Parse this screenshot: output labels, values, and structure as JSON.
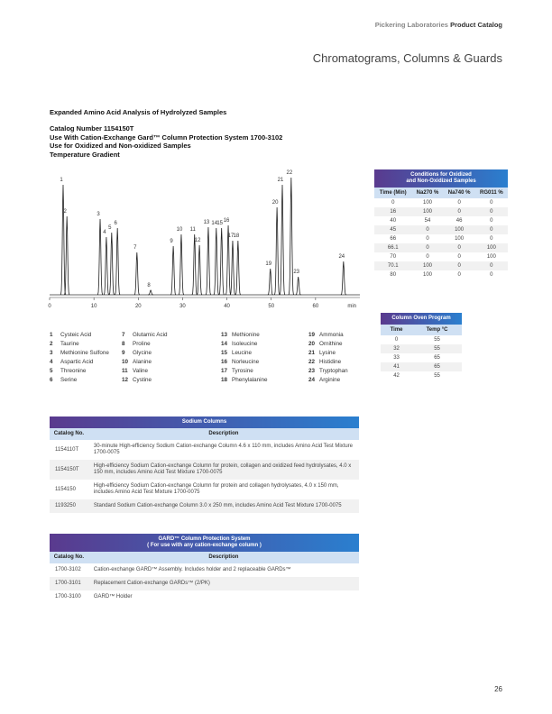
{
  "header": {
    "brand": "Pickering Laboratories",
    "catalog": "Product Catalog"
  },
  "section_title": "Chromatograms, Columns & Guards",
  "figure": {
    "title": "Expanded Amino Acid Analysis of Hydrolyzed Samples",
    "details": [
      "Catalog Number 1154150T",
      "Use With Cation-Exchange Gard™ Column Protection System 1700-3102",
      "Use for Oxidized and Non-oxidized Samples",
      "Temperature Gradient"
    ]
  },
  "chromatogram": {
    "type": "line",
    "x_unit": "min",
    "xlim": [
      0,
      70
    ],
    "xticks": [
      0,
      10,
      20,
      30,
      40,
      50,
      60
    ],
    "ylim": [
      0,
      140
    ],
    "peaks": [
      {
        "label": "1",
        "time": 3.05,
        "height": 122
      },
      {
        "label": "2",
        "time": 3.9,
        "height": 87
      },
      {
        "label": "3",
        "time": 11.4,
        "height": 84
      },
      {
        "label": "4",
        "time": 12.8,
        "height": 64
      },
      {
        "label": "5",
        "time": 14.0,
        "height": 69
      },
      {
        "label": "6",
        "time": 15.3,
        "height": 74
      },
      {
        "label": "7",
        "time": 19.7,
        "height": 47
      },
      {
        "label": "8",
        "time": 22.8,
        "height": 5
      },
      {
        "label": "9",
        "time": 27.9,
        "height": 54
      },
      {
        "label": "10",
        "time": 29.7,
        "height": 67
      },
      {
        "label": "11",
        "time": 32.7,
        "height": 67
      },
      {
        "label": "12",
        "time": 33.8,
        "height": 55
      },
      {
        "label": "13",
        "time": 35.8,
        "height": 75
      },
      {
        "label": "14",
        "time": 37.6,
        "height": 74
      },
      {
        "label": "15",
        "time": 38.8,
        "height": 74
      },
      {
        "label": "16",
        "time": 40.3,
        "height": 77
      },
      {
        "label": "17",
        "time": 41.3,
        "height": 60
      },
      {
        "label": "18",
        "time": 42.5,
        "height": 60
      },
      {
        "label": "19",
        "time": 49.8,
        "height": 29
      },
      {
        "label": "20",
        "time": 51.3,
        "height": 97
      },
      {
        "label": "21",
        "time": 52.5,
        "height": 122
      },
      {
        "label": "22",
        "time": 54.5,
        "height": 130
      },
      {
        "label": "23",
        "time": 56.1,
        "height": 20
      },
      {
        "label": "24",
        "time": 66.3,
        "height": 37
      }
    ]
  },
  "peak_key": [
    {
      "num": "1",
      "name": "Cysteic Acid"
    },
    {
      "num": "2",
      "name": "Taurine"
    },
    {
      "num": "3",
      "name": "Methionine Sulfone"
    },
    {
      "num": "4",
      "name": "Aspartic Acid"
    },
    {
      "num": "5",
      "name": "Threonine"
    },
    {
      "num": "6",
      "name": "Serine"
    },
    {
      "num": "7",
      "name": "Glutamic Acid"
    },
    {
      "num": "8",
      "name": "Proline"
    },
    {
      "num": "9",
      "name": "Glycine"
    },
    {
      "num": "10",
      "name": "Alanine"
    },
    {
      "num": "11",
      "name": "Valine"
    },
    {
      "num": "12",
      "name": "Cystine"
    },
    {
      "num": "13",
      "name": "Methionine"
    },
    {
      "num": "14",
      "name": "Isoleucine"
    },
    {
      "num": "15",
      "name": "Leucine"
    },
    {
      "num": "16",
      "name": "Norleucine"
    },
    {
      "num": "17",
      "name": "Tyrosine"
    },
    {
      "num": "18",
      "name": "Phenylalanine"
    },
    {
      "num": "19",
      "name": "Ammonia"
    },
    {
      "num": "20",
      "name": "Ornithine"
    },
    {
      "num": "21",
      "name": "Lysine"
    },
    {
      "num": "22",
      "name": "Histidine"
    },
    {
      "num": "23",
      "name": "Tryptophan"
    },
    {
      "num": "24",
      "name": "Arginine"
    }
  ],
  "conditions": {
    "title_lines": [
      "Conditions for Oxidized",
      "and Non-Oxidized Samples"
    ],
    "columns": [
      "Time (Min)",
      "Na270 %",
      "Na740 %",
      "RG011 %"
    ],
    "rows": [
      [
        "0",
        "100",
        "0",
        "0"
      ],
      [
        "16",
        "100",
        "0",
        "0"
      ],
      [
        "40",
        "54",
        "46",
        "0"
      ],
      [
        "45",
        "0",
        "100",
        "0"
      ],
      [
        "66",
        "0",
        "100",
        "0"
      ],
      [
        "66.1",
        "0",
        "0",
        "100"
      ],
      [
        "70",
        "0",
        "0",
        "100"
      ],
      [
        "70.1",
        "100",
        "0",
        "0"
      ],
      [
        "80",
        "100",
        "0",
        "0"
      ]
    ]
  },
  "oven": {
    "title_lines": [
      "Column Oven Program"
    ],
    "columns": [
      "Time",
      "Temp °C"
    ],
    "rows": [
      [
        "0",
        "55"
      ],
      [
        "32",
        "55"
      ],
      [
        "33",
        "65"
      ],
      [
        "41",
        "65"
      ],
      [
        "42",
        "55"
      ]
    ]
  },
  "sodium": {
    "title_lines": [
      "Sodium Columns"
    ],
    "columns": [
      "Catalog No.",
      "Description"
    ],
    "rows": [
      [
        "1154110T",
        "30-minute High-efficiency Sodium Cation-exchange Column 4.6 x 110 mm, includes Amino Acid Test Mixture 1700-0075"
      ],
      [
        "1154150T",
        "High-efficiency Sodium Cation-exchange Column for protein, collagen and oxidized feed hydrolysates, 4.0 x 150 mm, includes Amino Acid Test Mixture 1700-0075"
      ],
      [
        "1154150",
        "High-efficiency Sodium Cation-exchange Column for protein and collagen hydrolysates, 4.0 x 150 mm, includes Amino Acid Test Mixture 1700-0075"
      ],
      [
        "1193250",
        "Standard Sodium Cation-exchange Column 3.0 x 250 mm, includes Amino Acid Test Mixture 1700-0075"
      ]
    ]
  },
  "gard": {
    "title_lines": [
      "GARD™ Column Protection System",
      "( For use with any cation-exchange column )"
    ],
    "columns": [
      "Catalog No.",
      "Description"
    ],
    "rows": [
      [
        "1700-3102",
        "Cation-exchange GARD™ Assembly. Includes holder and 2 replaceable GARDs™"
      ],
      [
        "1700-3101",
        "Replacement Cation-exchange GARDs™ (2/PK)"
      ],
      [
        "1700-3100",
        "GARD™ Holder"
      ]
    ]
  },
  "page_number": "26"
}
